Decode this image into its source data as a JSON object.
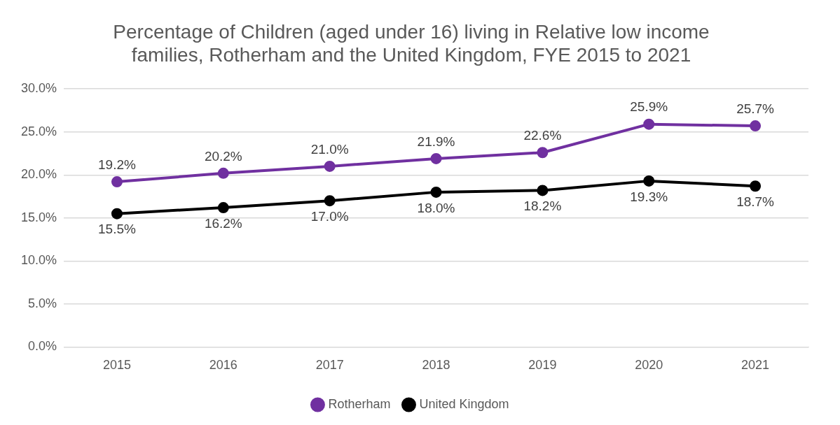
{
  "chart_data": {
    "type": "line",
    "title": "Percentage of Children (aged under 16) living in Relative low income families, Rotherham and the United Kingdom, FYE 2015 to 2021",
    "categories": [
      "2015",
      "2016",
      "2017",
      "2018",
      "2019",
      "2020",
      "2021"
    ],
    "series": [
      {
        "name": "Rotherham",
        "color": "#7030a0",
        "values": [
          19.2,
          20.2,
          21.0,
          21.9,
          22.6,
          25.9,
          25.7
        ],
        "value_labels": [
          "19.2%",
          "20.2%",
          "21.0%",
          "21.9%",
          "22.6%",
          "25.9%",
          "25.7%"
        ]
      },
      {
        "name": "United Kingdom",
        "color": "#000000",
        "values": [
          15.5,
          16.2,
          17.0,
          18.0,
          18.2,
          19.3,
          18.7
        ],
        "value_labels": [
          "15.5%",
          "16.2%",
          "17.0%",
          "18.0%",
          "18.2%",
          "19.3%",
          "18.7%"
        ]
      }
    ],
    "ylim": [
      0,
      30
    ],
    "yticks": [
      {
        "value": 0,
        "label": "0.0%"
      },
      {
        "value": 5,
        "label": "5.0%"
      },
      {
        "value": 10,
        "label": "10.0%"
      },
      {
        "value": 15,
        "label": "15.0%"
      },
      {
        "value": 20,
        "label": "20.0%"
      },
      {
        "value": 25,
        "label": "25.0%"
      },
      {
        "value": 30,
        "label": "30.0%"
      }
    ],
    "grid": "y",
    "legend": "bottom",
    "marker": "circle",
    "line_style": "solid"
  }
}
